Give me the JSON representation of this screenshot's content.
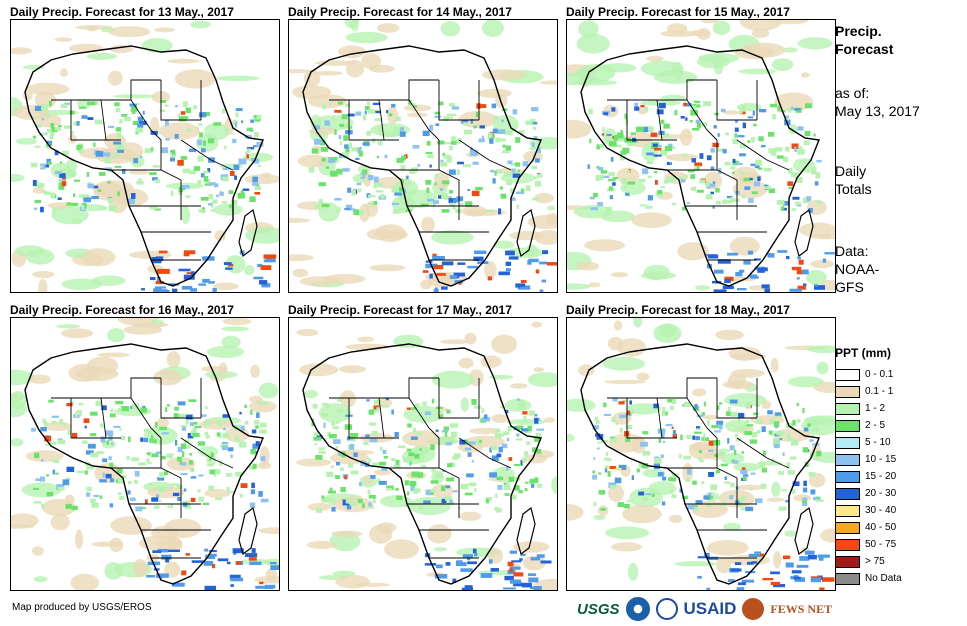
{
  "panels": [
    {
      "title": "Daily Precip. Forecast for 13 May., 2017"
    },
    {
      "title": "Daily Precip. Forecast for 14 May., 2017"
    },
    {
      "title": "Daily Precip. Forecast for 15 May., 2017"
    },
    {
      "title": "Daily Precip. Forecast for 16 May., 2017"
    },
    {
      "title": "Daily Precip. Forecast for 17 May., 2017"
    },
    {
      "title": "Daily Precip. Forecast for 18 May., 2017"
    }
  ],
  "sidebar": {
    "title_line1": "Precip.",
    "title_line2": "Forecast",
    "asof_line1": "as of:",
    "asof_line2": "May 13, 2017",
    "totals_line1": "Daily",
    "totals_line2": "Totals",
    "data_line1": "Data:",
    "data_line2": "NOAA-",
    "data_line3": "GFS"
  },
  "legend": {
    "title": "PPT (mm)",
    "items": [
      {
        "label": "0 - 0.1",
        "color": "#ffffff"
      },
      {
        "label": "0.1 - 1",
        "color": "#ead9b8"
      },
      {
        "label": "1 - 2",
        "color": "#b6f2b0"
      },
      {
        "label": "2 - 5",
        "color": "#6be36b"
      },
      {
        "label": "5 - 10",
        "color": "#b3ecf5"
      },
      {
        "label": "10 - 15",
        "color": "#8ec2f0"
      },
      {
        "label": "15 - 20",
        "color": "#4f9be8"
      },
      {
        "label": "20 - 30",
        "color": "#2462d8"
      },
      {
        "label": "30 - 40",
        "color": "#fbe98a"
      },
      {
        "label": "40 - 50",
        "color": "#f5a623"
      },
      {
        "label": "50 - 75",
        "color": "#f04a12"
      },
      {
        "label": "> 75",
        "color": "#a31a1a"
      },
      {
        "label": "No Data",
        "color": "#8c8c8c"
      }
    ]
  },
  "footer": {
    "credit": "Map produced by USGS/EROS"
  },
  "logos": {
    "usgs": "USGS",
    "usaid": "USAID",
    "fews": "FEWS NET"
  }
}
